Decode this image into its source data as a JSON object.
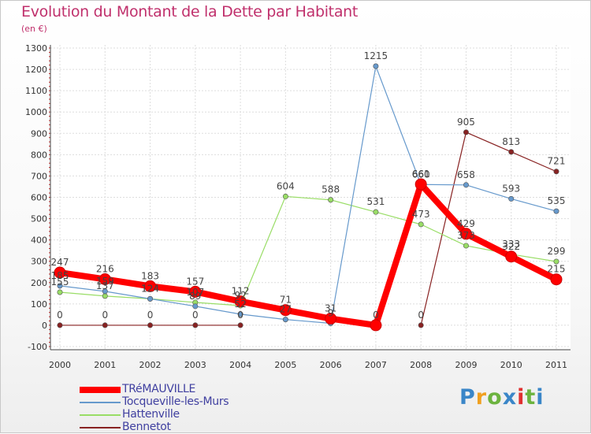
{
  "title": "Evolution du Montant de la Dette par Habitant",
  "subtitle": "(en €)",
  "brand": {
    "text": "Proxiti",
    "colors": [
      "#3a86c8",
      "#f0a020",
      "#6cb33f",
      "#3a86c8",
      "#e03030",
      "#6cb33f",
      "#3a86c8"
    ]
  },
  "chart_data": {
    "type": "line",
    "x": [
      "2000",
      "2001",
      "2002",
      "2003",
      "2004",
      "2005",
      "2006",
      "2007",
      "2008",
      "2009",
      "2010",
      "2011"
    ],
    "ylim": [
      -100,
      1300
    ],
    "yticks": [
      -100,
      0,
      100,
      200,
      300,
      400,
      500,
      600,
      700,
      800,
      900,
      1000,
      1100,
      1200,
      1300
    ],
    "grid": true,
    "legend": "bottom-left",
    "series": [
      {
        "name": "TRéMAUVILLE",
        "color": "#ff0000",
        "values": [
          247,
          216,
          183,
          157,
          112,
          71,
          31,
          0,
          661,
          429,
          322,
          215
        ]
      },
      {
        "name": "Tocqueville-les-Murs",
        "color": "#6699cc",
        "values": [
          185,
          159,
          124,
          89,
          52,
          27,
          9,
          1215,
          660,
          658,
          593,
          535
        ]
      },
      {
        "name": "Hattenville",
        "color": "#99dd66",
        "values": [
          155,
          137,
          124,
          107,
          92,
          604,
          588,
          531,
          473,
          373,
          333,
          299
        ]
      },
      {
        "name": "Bennetot",
        "color": "#882222",
        "values": [
          0,
          0,
          0,
          0,
          0,
          null,
          null,
          null,
          0,
          905,
          813,
          721
        ]
      }
    ]
  }
}
